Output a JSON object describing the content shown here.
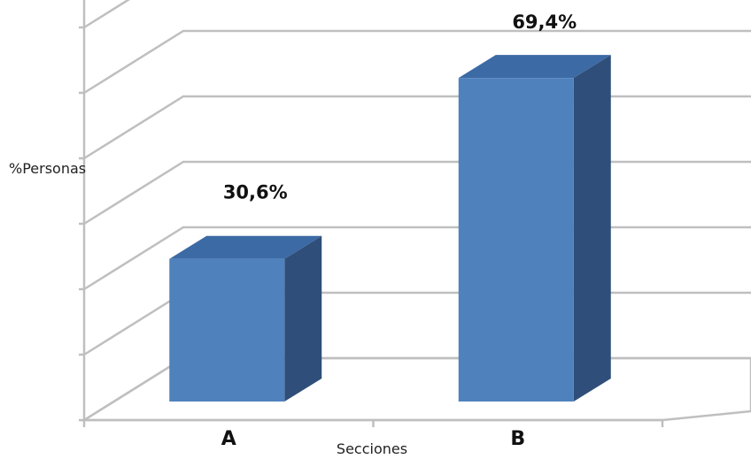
{
  "chart_data": {
    "type": "bar",
    "style": "3d-column",
    "categories": [
      "A",
      "B"
    ],
    "values": [
      30.6,
      69.4
    ],
    "data_labels": [
      "30,6%",
      "69,4%"
    ],
    "xlabel": "Secciones",
    "ylabel": "%Personas",
    "ylim": [
      0,
      70
    ],
    "y_divisions": 7,
    "grid": true,
    "legend": "none",
    "colors": {
      "bar_front": "#4f81bd",
      "bar_side": "#2f4e79",
      "bar_top": "#3c6aa4",
      "grid": "#bfbfbf"
    }
  }
}
